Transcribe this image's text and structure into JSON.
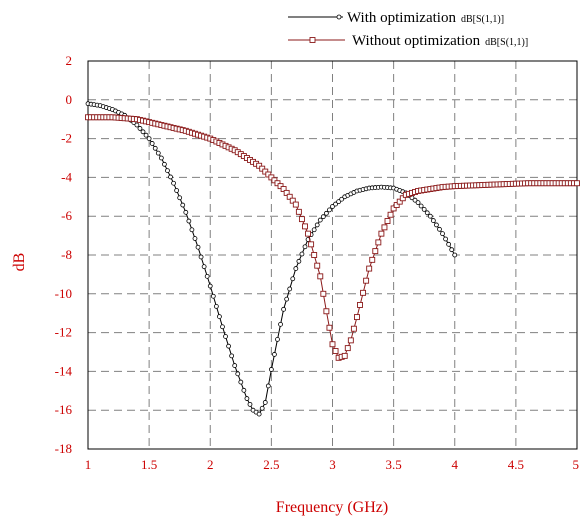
{
  "chart_data": {
    "type": "line",
    "title": "",
    "xlabel": "Frequency (GHz)",
    "ylabel": "dB",
    "xlim": [
      1,
      5
    ],
    "ylim": [
      -18,
      2
    ],
    "x_ticks": [
      1,
      1.5,
      2,
      2.5,
      3,
      3.5,
      4,
      4.5,
      5
    ],
    "x_tick_labels": [
      "1",
      "1.5",
      "2",
      "2.5",
      "3",
      "3.5",
      "4",
      "4.5",
      "5"
    ],
    "y_ticks": [
      2,
      0,
      -2,
      -4,
      -6,
      -8,
      -10,
      -12,
      -14,
      -16,
      -18
    ],
    "y_tick_labels": [
      "2",
      "0",
      "-2",
      "-4",
      "-6",
      "-8",
      "-10",
      "-12",
      "-14",
      "-16",
      "-18"
    ],
    "grid": true,
    "legend_position": "top-right",
    "series": [
      {
        "name": "With optimization",
        "name_suffix": "dB[S(1,1)]",
        "color": "#000000",
        "marker": "circle",
        "x": [
          1.0,
          1.1,
          1.2,
          1.3,
          1.4,
          1.5,
          1.6,
          1.7,
          1.8,
          1.9,
          2.0,
          2.1,
          2.2,
          2.3,
          2.35,
          2.4,
          2.45,
          2.5,
          2.6,
          2.7,
          2.8,
          2.9,
          3.0,
          3.1,
          3.2,
          3.3,
          3.4,
          3.5,
          3.6,
          3.7,
          3.8,
          3.9,
          4.0
        ],
        "y": [
          -0.2,
          -0.3,
          -0.5,
          -0.8,
          -1.3,
          -2.0,
          -3.0,
          -4.3,
          -5.8,
          -7.6,
          -9.6,
          -11.7,
          -13.7,
          -15.4,
          -16.0,
          -16.2,
          -15.6,
          -13.9,
          -10.8,
          -8.7,
          -7.2,
          -6.2,
          -5.5,
          -5.0,
          -4.7,
          -4.55,
          -4.5,
          -4.55,
          -4.8,
          -5.3,
          -6.0,
          -6.9,
          -8.0
        ]
      },
      {
        "name": "Without optimization",
        "name_suffix": "dB[S(1,1)]",
        "color": "#8b1a1a",
        "marker": "square",
        "x": [
          1.0,
          1.2,
          1.4,
          1.6,
          1.8,
          2.0,
          2.2,
          2.4,
          2.6,
          2.7,
          2.8,
          2.9,
          2.95,
          3.0,
          3.05,
          3.1,
          3.15,
          3.2,
          3.3,
          3.4,
          3.5,
          3.6,
          3.7,
          3.8,
          3.9,
          4.0,
          4.2,
          4.4,
          4.6,
          4.8,
          5.0
        ],
        "y": [
          -0.9,
          -0.9,
          -1.0,
          -1.3,
          -1.6,
          -2.0,
          -2.6,
          -3.4,
          -4.6,
          -5.4,
          -6.9,
          -9.1,
          -10.9,
          -12.6,
          -13.3,
          -13.2,
          -12.4,
          -11.2,
          -8.7,
          -6.9,
          -5.6,
          -4.9,
          -4.7,
          -4.6,
          -4.5,
          -4.45,
          -4.4,
          -4.35,
          -4.3,
          -4.3,
          -4.3
        ]
      }
    ]
  }
}
